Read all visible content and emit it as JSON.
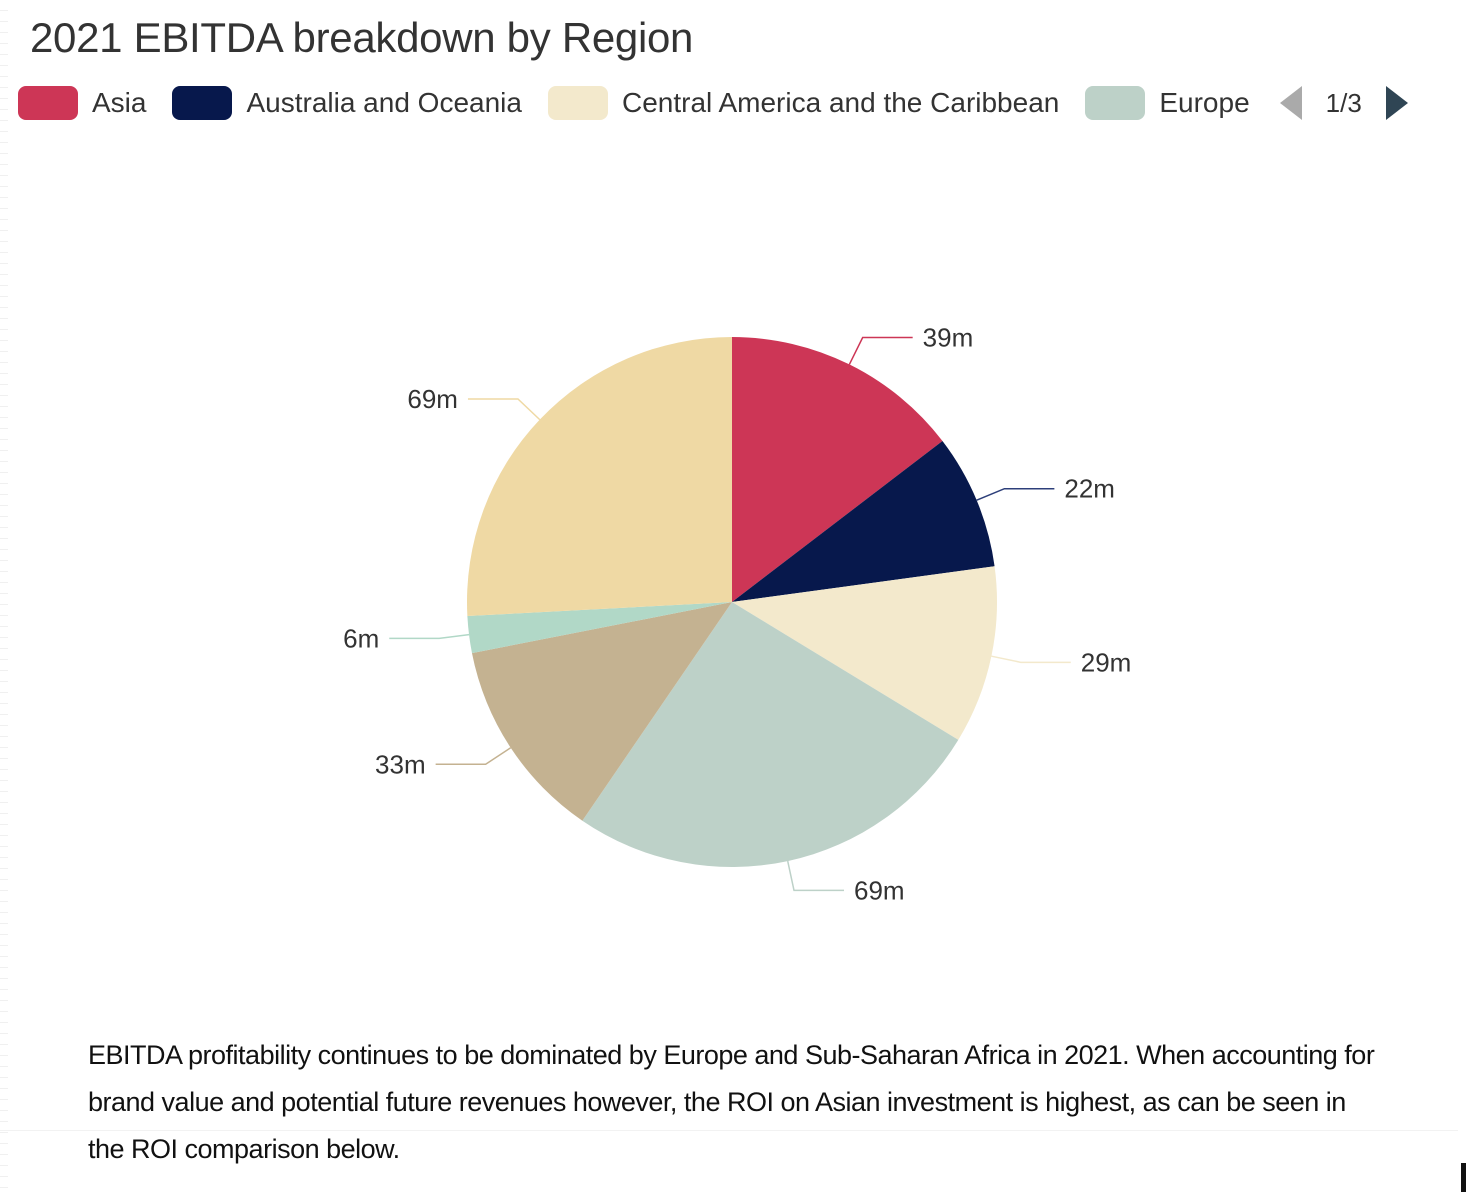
{
  "chart_data": {
    "type": "pie",
    "title": "2021 EBITDA breakdown by Region",
    "unit_suffix": "m",
    "start_angle_deg": 90,
    "direction": "clockwise",
    "legend": {
      "position": "top",
      "visible_entries": [
        "Asia",
        "Australia and Oceania",
        "Central America and the Caribbean",
        "Europe"
      ],
      "page": "1/3"
    },
    "slices": [
      {
        "name": "Asia",
        "value": 39,
        "label": "39m",
        "color": "#cd3656"
      },
      {
        "name": "Australia and Oceania",
        "value": 22,
        "label": "22m",
        "color": "#07184c"
      },
      {
        "name": "Central America and the Caribbean",
        "value": 29,
        "label": "29m",
        "color": "#f3e9cc"
      },
      {
        "name": "Europe",
        "value": 69,
        "label": "69m",
        "color": "#bdd1c8"
      },
      {
        "name": "",
        "value": 33,
        "label": "33m",
        "color": "#c4b291"
      },
      {
        "name": "",
        "value": 6,
        "label": "6m",
        "color": "#b1d8c7"
      },
      {
        "name": "",
        "value": 69,
        "label": "69m",
        "color": "#efd9a4"
      }
    ]
  },
  "header": {
    "title": "2021 EBITDA breakdown by Region"
  },
  "legend": {
    "items": [
      {
        "label": "Asia",
        "color": "#cd3656"
      },
      {
        "label": "Australia and Oceania",
        "color": "#07184c"
      },
      {
        "label": "Central America and the Caribbean",
        "color": "#f3e9cc"
      },
      {
        "label": "Europe",
        "color": "#bdd1c8"
      }
    ],
    "page_indicator": "1/3"
  },
  "caption": {
    "text": "EBITDA profitability continues to be dominated by Europe and Sub-Saharan Africa in 2021. When accounting for brand value and potential future revenues however, the ROI on Asian investment is highest, as can be seen in the ROI comparison below."
  }
}
